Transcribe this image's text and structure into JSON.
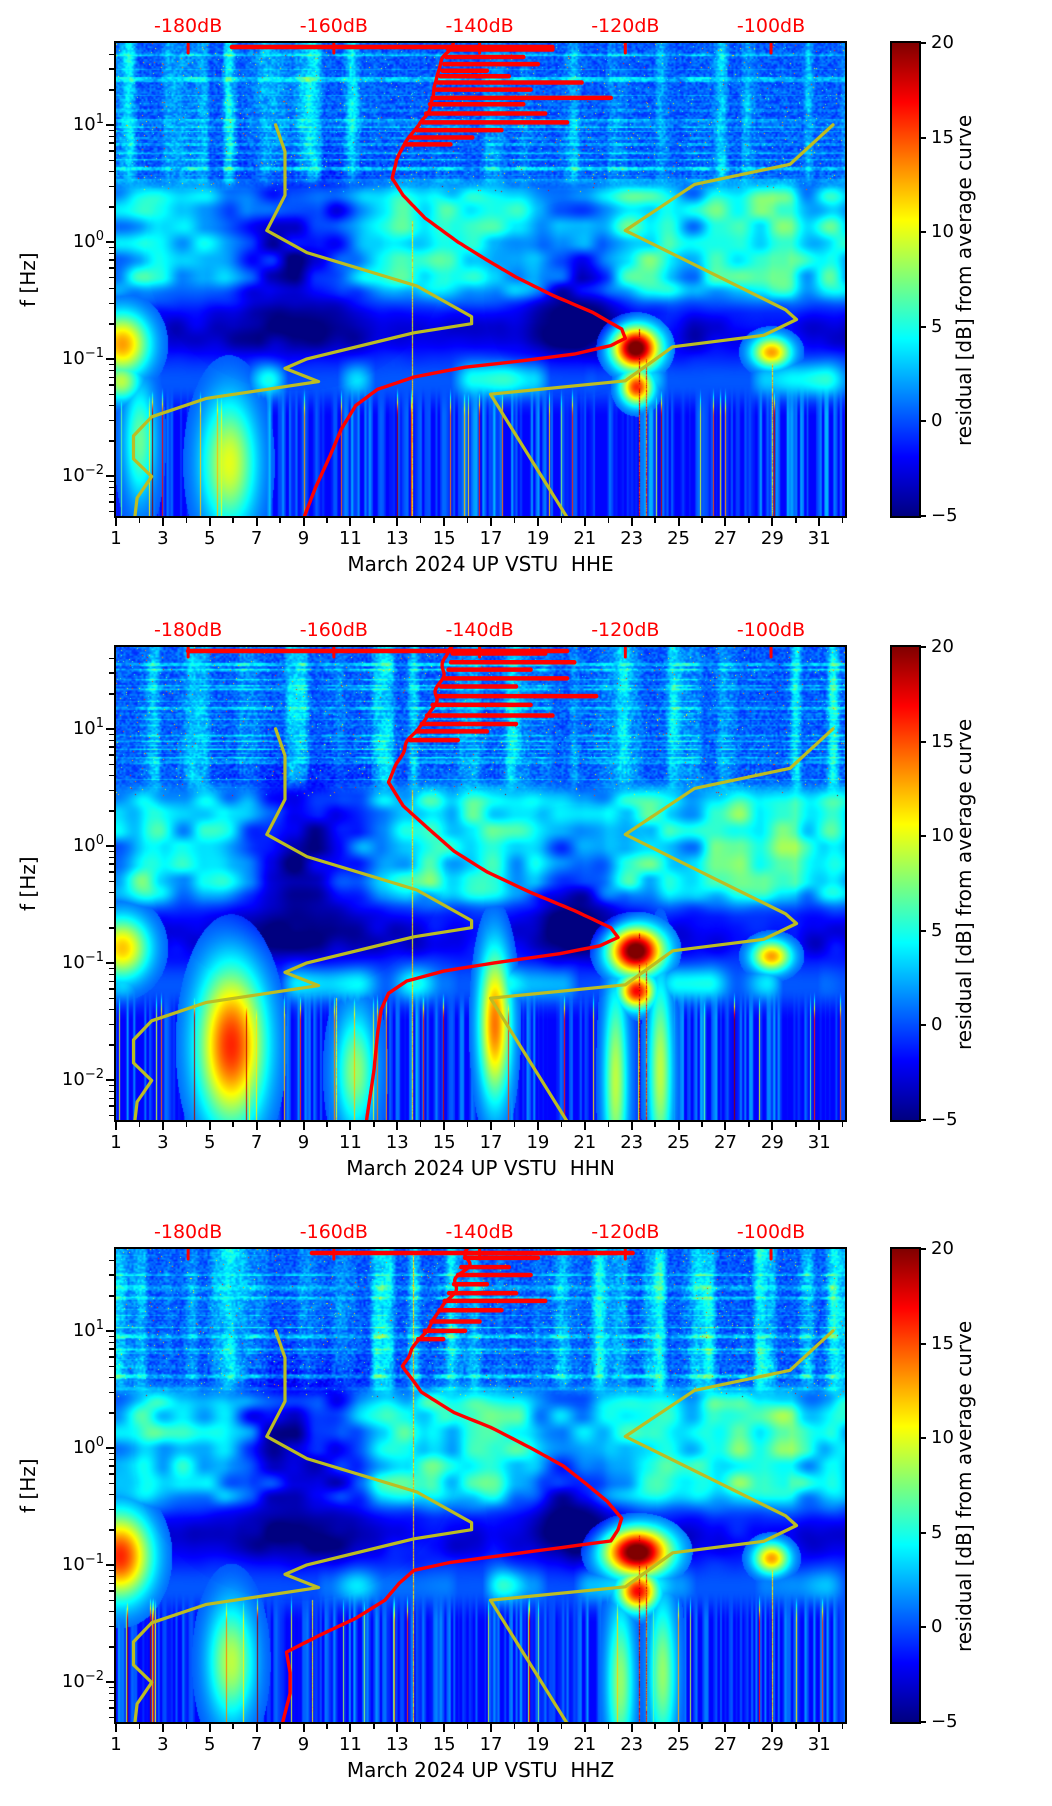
{
  "chart_data": {
    "type": "heatmap",
    "description": "Three seismic residual probabilistic spectrograms (channels HHE, HHN, HHZ) of station UP VSTU for March 2024. Color = residual in dB from the station average PSD curve (jet colormap, -5 to 20 dB). Overlaid: red station-average PSD curve and yellow Peterson NLNM/NHNM reference curves, both read against the red dB axis on top.",
    "colormap": "jet",
    "value_label": "residual [dB] from average curve",
    "value_range": [
      -5,
      20
    ],
    "x_axis": {
      "range_days": [
        1,
        32.1
      ],
      "major_ticks": [
        1,
        3,
        5,
        7,
        9,
        11,
        13,
        15,
        17,
        19,
        21,
        23,
        25,
        27,
        29,
        31
      ],
      "major_labels": [
        "1",
        "3",
        "5",
        "7",
        "9",
        "11",
        "13",
        "15",
        "17",
        "19",
        "21",
        "23",
        "25",
        "27",
        "29",
        "31"
      ],
      "minor_ticks": [
        2,
        4,
        6,
        8,
        10,
        12,
        14,
        16,
        18,
        20,
        22,
        24,
        26,
        28,
        30,
        32
      ]
    },
    "y_axis": {
      "label": "f [Hz]",
      "scale": "log",
      "range_hz": [
        0.00455,
        50
      ],
      "major_ticks": [
        {
          "value": 10,
          "base": "10",
          "exp": "1"
        },
        {
          "value": 1,
          "base": "10",
          "exp": "0"
        },
        {
          "value": 0.1,
          "base": "10",
          "exp": "−1"
        },
        {
          "value": 0.01,
          "base": "10",
          "exp": "−2"
        }
      ]
    },
    "top_axis": {
      "color": "#ff0000",
      "range_db": [
        -189.9,
        -89.85
      ],
      "ticks": [
        -180,
        -160,
        -140,
        -120,
        -100
      ],
      "labels": [
        "-180dB",
        "-160dB",
        "-140dB",
        "-120dB",
        "-100dB"
      ]
    },
    "colorbar": {
      "label": "residual [dB] from average curve",
      "range": [
        -5,
        20
      ],
      "ticks": [
        20,
        15,
        10,
        5,
        0,
        -5
      ],
      "tick_labels": [
        "20",
        "15",
        "10",
        "5",
        "0",
        "−5"
      ],
      "gradient_stops": [
        [
          0,
          "#000080"
        ],
        [
          0.125,
          "#0000ff"
        ],
        [
          0.375,
          "#00ffff"
        ],
        [
          0.5,
          "#7dff7a"
        ],
        [
          0.625,
          "#ffff00"
        ],
        [
          0.875,
          "#ff0000"
        ],
        [
          1,
          "#800000"
        ]
      ]
    },
    "overlays": {
      "psd_color": "#ff0000",
      "noise_model_color": "#bcbd22",
      "nlnm": [
        [
          10,
          -168
        ],
        [
          5.9,
          -166.7
        ],
        [
          2.5,
          -166.7
        ],
        [
          1.25,
          -169.2
        ],
        [
          0.81,
          -163.7
        ],
        [
          0.42,
          -148.6
        ],
        [
          0.23,
          -141.1
        ],
        [
          0.2,
          -141.1
        ],
        [
          0.167,
          -149
        ],
        [
          0.1,
          -163.7
        ],
        [
          0.083,
          -166.7
        ],
        [
          0.064,
          -162.1
        ],
        [
          0.046,
          -177.5
        ],
        [
          0.032,
          -185
        ],
        [
          0.022,
          -187.5
        ],
        [
          0.014,
          -187.5
        ],
        [
          0.0099,
          -185
        ],
        [
          0.0065,
          -187
        ],
        [
          0.0045,
          -187.3
        ]
      ],
      "nhnm": [
        [
          10,
          -91.5
        ],
        [
          4.6,
          -97.4
        ],
        [
          3.1,
          -110.5
        ],
        [
          1.25,
          -120
        ],
        [
          0.263,
          -98
        ],
        [
          0.217,
          -96.5
        ],
        [
          0.159,
          -101
        ],
        [
          0.127,
          -113.5
        ],
        [
          0.065,
          -120
        ],
        [
          0.05,
          -138.5
        ],
        [
          0.0028,
          -126
        ]
      ]
    },
    "panels": [
      {
        "channel": "HHE",
        "xlabel": "March 2024 UP VSTU  HHE",
        "seed": 11,
        "psd": [
          [
            50,
            -144
          ],
          [
            40,
            -144.5
          ],
          [
            30,
            -145
          ],
          [
            20,
            -146
          ],
          [
            14,
            -147
          ],
          [
            10,
            -148
          ],
          [
            7,
            -150
          ],
          [
            5,
            -151.5
          ],
          [
            3.5,
            -152
          ],
          [
            2.5,
            -150.5
          ],
          [
            1.6,
            -147.5
          ],
          [
            1.0,
            -143
          ],
          [
            0.7,
            -139
          ],
          [
            0.5,
            -135
          ],
          [
            0.35,
            -130
          ],
          [
            0.25,
            -124.5
          ],
          [
            0.18,
            -120.5
          ],
          [
            0.15,
            -120
          ],
          [
            0.13,
            -122
          ],
          [
            0.11,
            -127
          ],
          [
            0.095,
            -135
          ],
          [
            0.085,
            -142
          ],
          [
            0.07,
            -149
          ],
          [
            0.055,
            -154
          ],
          [
            0.04,
            -157
          ],
          [
            0.025,
            -159
          ],
          [
            0.015,
            -160.5
          ],
          [
            0.008,
            -162.5
          ],
          [
            0.0046,
            -164
          ]
        ],
        "psd_spikes": [
          [
            44,
            -130
          ],
          [
            38,
            -134
          ],
          [
            33,
            -132
          ],
          [
            29,
            -139
          ],
          [
            26,
            -136
          ],
          [
            23,
            -126
          ],
          [
            20,
            -133
          ],
          [
            17,
            -122
          ],
          [
            15,
            -134
          ],
          [
            12.5,
            -131
          ],
          [
            10.5,
            -128
          ],
          [
            9,
            -137
          ],
          [
            7.8,
            -141
          ],
          [
            6.8,
            -144
          ]
        ],
        "top_strip_db": [
          -174,
          -130
        ],
        "features": [
          [
            1.25,
            0.135,
            0.7,
            0.16,
            13
          ],
          [
            1.2,
            0.065,
            0.5,
            0.1,
            9
          ],
          [
            23.15,
            0.125,
            0.6,
            0.11,
            22
          ],
          [
            23.2,
            0.058,
            0.4,
            0.09,
            16
          ],
          [
            28.95,
            0.115,
            0.5,
            0.08,
            13
          ],
          [
            5.8,
            0.013,
            0.7,
            0.33,
            10
          ],
          [
            2.0,
            0.02,
            0.4,
            0.3,
            7
          ],
          [
            8.7,
            0.8,
            2.3,
            0.42,
            -5.5
          ],
          [
            20.6,
            0.33,
            1.4,
            0.3,
            -4.5
          ]
        ],
        "red_lines": [
          [
            13.62,
            1.5,
            13
          ],
          [
            23.3,
            0.18,
            20
          ],
          [
            23.6,
            0.1,
            18
          ],
          [
            29.0,
            0.09,
            14
          ]
        ]
      },
      {
        "channel": "HHN",
        "xlabel": "March 2024 UP VSTU  HHN",
        "seed": 47,
        "psd": [
          [
            50,
            -143.5
          ],
          [
            35,
            -144
          ],
          [
            25,
            -145
          ],
          [
            18,
            -146
          ],
          [
            12,
            -147.5
          ],
          [
            8,
            -149.5
          ],
          [
            5,
            -151.5
          ],
          [
            3.5,
            -152.5
          ],
          [
            2.2,
            -150.5
          ],
          [
            1.4,
            -147
          ],
          [
            0.9,
            -143.5
          ],
          [
            0.6,
            -139
          ],
          [
            0.4,
            -133
          ],
          [
            0.28,
            -127
          ],
          [
            0.2,
            -122
          ],
          [
            0.165,
            -121
          ],
          [
            0.14,
            -123.5
          ],
          [
            0.12,
            -129
          ],
          [
            0.1,
            -138
          ],
          [
            0.085,
            -145
          ],
          [
            0.07,
            -150
          ],
          [
            0.055,
            -152.5
          ],
          [
            0.04,
            -153.5
          ],
          [
            0.025,
            -154
          ],
          [
            0.012,
            -154.5
          ],
          [
            0.0046,
            -155.5
          ]
        ],
        "psd_spikes": [
          [
            44,
            -131
          ],
          [
            37,
            -127
          ],
          [
            32,
            -133
          ],
          [
            27,
            -128
          ],
          [
            23,
            -135
          ],
          [
            19,
            -124
          ],
          [
            16,
            -133
          ],
          [
            13,
            -130
          ],
          [
            11,
            -135
          ],
          [
            9.5,
            -139
          ],
          [
            8,
            -143
          ]
        ],
        "top_strip_db": [
          -180,
          -128
        ],
        "features": [
          [
            1.25,
            0.135,
            0.7,
            0.16,
            12
          ],
          [
            23.15,
            0.128,
            0.7,
            0.12,
            22
          ],
          [
            23.2,
            0.058,
            0.45,
            0.09,
            17
          ],
          [
            28.95,
            0.115,
            0.5,
            0.08,
            13
          ],
          [
            5.9,
            0.02,
            0.85,
            0.4,
            16
          ],
          [
            17.15,
            0.03,
            0.4,
            0.38,
            14
          ],
          [
            11.2,
            0.012,
            0.5,
            0.3,
            8
          ],
          [
            22.3,
            0.01,
            0.3,
            0.5,
            9
          ],
          [
            24.2,
            0.012,
            0.3,
            0.5,
            9
          ],
          [
            8.7,
            0.8,
            2.3,
            0.42,
            -5.5
          ],
          [
            20.6,
            0.33,
            1.4,
            0.3,
            -4.5
          ]
        ],
        "red_lines": [
          [
            13.62,
            3,
            13
          ],
          [
            23.3,
            0.18,
            20
          ],
          [
            23.6,
            0.1,
            18
          ],
          [
            10.4,
            0.05,
            12
          ]
        ]
      },
      {
        "channel": "HHZ",
        "xlabel": "March 2024 UP VSTU  HHZ",
        "seed": 83,
        "psd": [
          [
            50,
            -141.5
          ],
          [
            35,
            -142.5
          ],
          [
            25,
            -143.5
          ],
          [
            15,
            -145.5
          ],
          [
            10,
            -147.5
          ],
          [
            7,
            -149.5
          ],
          [
            5,
            -150.5
          ],
          [
            3,
            -148
          ],
          [
            2,
            -143.5
          ],
          [
            1.5,
            -138.5
          ],
          [
            1.0,
            -133
          ],
          [
            0.7,
            -128.5
          ],
          [
            0.5,
            -125.5
          ],
          [
            0.35,
            -122.5
          ],
          [
            0.25,
            -120.5
          ],
          [
            0.2,
            -121
          ],
          [
            0.16,
            -122
          ],
          [
            0.13,
            -133
          ],
          [
            0.105,
            -144
          ],
          [
            0.09,
            -149
          ],
          [
            0.07,
            -151
          ],
          [
            0.05,
            -153
          ],
          [
            0.035,
            -157
          ],
          [
            0.025,
            -162
          ],
          [
            0.018,
            -166.5
          ],
          [
            0.012,
            -166
          ],
          [
            0.008,
            -166
          ],
          [
            0.0046,
            -167
          ]
        ],
        "psd_spikes": [
          [
            42,
            -132
          ],
          [
            35,
            -136
          ],
          [
            30,
            -133
          ],
          [
            25,
            -139
          ],
          [
            21,
            -135
          ],
          [
            18,
            -131
          ],
          [
            15,
            -137
          ],
          [
            12,
            -140
          ],
          [
            10,
            -142
          ],
          [
            8.5,
            -145
          ]
        ],
        "top_strip_db": [
          -163,
          -119
        ],
        "features": [
          [
            1.15,
            0.12,
            0.8,
            0.22,
            16
          ],
          [
            23.2,
            0.13,
            0.85,
            0.12,
            22
          ],
          [
            23.25,
            0.06,
            0.5,
            0.1,
            17
          ],
          [
            28.95,
            0.115,
            0.45,
            0.08,
            13
          ],
          [
            5.9,
            0.015,
            0.6,
            0.3,
            9
          ],
          [
            22.5,
            0.01,
            0.35,
            0.4,
            8
          ],
          [
            24.3,
            0.012,
            0.35,
            0.4,
            8
          ],
          [
            8.7,
            0.9,
            2.5,
            0.45,
            -5.5
          ],
          [
            20.4,
            0.35,
            1.3,
            0.3,
            -4.5
          ]
        ],
        "red_lines": [
          [
            13.65,
            45,
            14
          ],
          [
            23.3,
            0.18,
            20
          ],
          [
            23.6,
            0.1,
            18
          ],
          [
            29.0,
            0.09,
            13
          ],
          [
            9.35,
            0.05,
            12
          ]
        ]
      }
    ],
    "shared_activity_mid": [
      [
        2.2,
        0.5,
        0.8
      ],
      [
        4.9,
        1.3,
        1.0
      ],
      [
        12.5,
        1.1,
        1.0
      ],
      [
        14.6,
        0.5,
        0.7
      ],
      [
        16.8,
        1.0,
        0.9
      ],
      [
        18.6,
        0.5,
        0.6
      ],
      [
        23.1,
        0.9,
        1.0
      ],
      [
        24.6,
        0.5,
        0.6
      ],
      [
        26.3,
        0.4,
        0.5
      ],
      [
        28.2,
        1.4,
        1.0
      ],
      [
        29.5,
        0.5,
        0.7
      ],
      [
        31.7,
        0.5,
        0.9
      ]
    ]
  }
}
